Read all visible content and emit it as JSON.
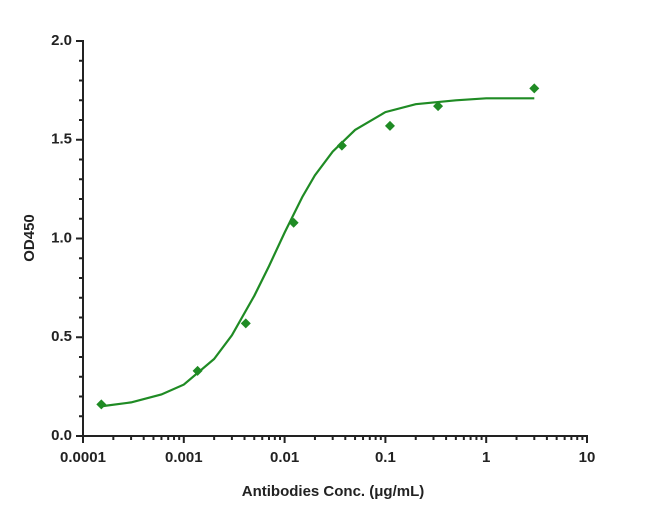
{
  "chart_data": {
    "type": "scatter",
    "xlabel": "Antibodies Conc. (μg/mL)",
    "ylabel": "OD450",
    "xscale": "log",
    "xlim": [
      0.0001,
      10
    ],
    "xticks": [
      0.0001,
      0.001,
      0.01,
      0.1,
      1,
      10
    ],
    "ylim": [
      0,
      2
    ],
    "yticks": [
      {
        "value": 0,
        "label": "0.0"
      },
      0.5,
      {
        "value": 1,
        "label": "1.0"
      },
      1.5,
      {
        "value": 2,
        "label": "2.0"
      }
    ],
    "series": [
      {
        "color": "#1f8b24",
        "marker": "diamond",
        "x": [
          0.000152,
          0.00137,
          0.00412,
          0.0123,
          0.037,
          0.111,
          0.333,
          3
        ],
        "values": [
          0.16,
          0.33,
          0.57,
          1.08,
          1.47,
          1.57,
          1.67,
          1.76
        ]
      },
      {
        "color": "#1f8b24",
        "style": "line",
        "x": [
          0.00015,
          0.0003,
          0.0006,
          0.001,
          0.002,
          0.003,
          0.005,
          0.007,
          0.01,
          0.015,
          0.02,
          0.03,
          0.05,
          0.1,
          0.2,
          0.5,
          1,
          3
        ],
        "values": [
          0.15,
          0.17,
          0.21,
          0.26,
          0.39,
          0.51,
          0.71,
          0.86,
          1.03,
          1.21,
          1.32,
          1.44,
          1.55,
          1.64,
          1.68,
          1.7,
          1.71,
          1.71
        ]
      }
    ]
  }
}
